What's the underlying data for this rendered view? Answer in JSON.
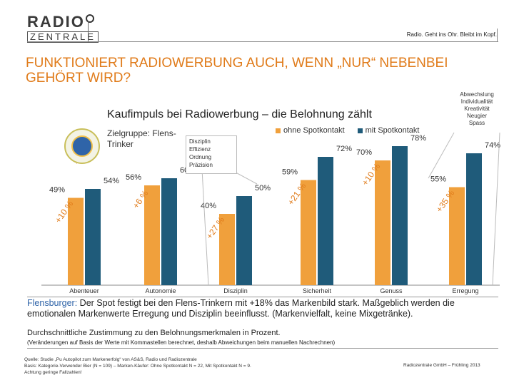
{
  "header": {
    "logo_line1": "RADIO",
    "logo_line2": "ZENTRALE",
    "tagline": "Radio. Geht ins Ohr. Bleibt im Kopf."
  },
  "title": "FUNKTIONIERT RADIOWERBUNG AUCH, WENN „NUR“ NEBENBEI GEHÖRT WIRD?",
  "chart_data": {
    "type": "bar",
    "title": "Kaufimpuls bei Radiowerbung – die Belohnung zählt",
    "target_group": "Zielgruppe: Flens-Trinker",
    "categories": [
      "Abenteuer",
      "Autonomie",
      "Disziplin",
      "Sicherheit",
      "Genuss",
      "Erregung"
    ],
    "series": [
      {
        "name": "ohne Spotkontakt",
        "color": "#f0a03c",
        "values": [
          49,
          56,
          40,
          59,
          70,
          55
        ]
      },
      {
        "name": "mit Spotkontakt",
        "color": "#1f5b7a",
        "values": [
          54,
          60,
          50,
          72,
          78,
          74
        ]
      }
    ],
    "value_labels_ohne": [
      "49%",
      "56%",
      "40%",
      "59%",
      "70%",
      "55%"
    ],
    "value_labels_mit": [
      "54%",
      "60%",
      "50%",
      "72%",
      "78%",
      "74%"
    ],
    "uplift_labels": [
      "+10 %",
      "+6 %",
      "+27 %",
      "+21 %",
      "+10 %",
      "+35 %"
    ],
    "overall_uplift": "+18 %",
    "ylim": [
      0,
      100
    ],
    "emotion_labels": [
      "Abwechslung",
      "Individualität",
      "Kreativität",
      "Neugier",
      "Spass"
    ],
    "discipline_labels": [
      "Disziplin",
      "Effizienz",
      "Ordnung",
      "Präzision"
    ]
  },
  "description": {
    "lead": "Flensburger:",
    "text": " Der Spot festigt bei den Flens-Trinkern mit +18% das Markenbild stark. Maßgeblich werden die emotionalen Markenwerte Erregung und Disziplin beeinflusst. (Markenvielfalt, keine Mixgetränke).",
    "note1": "Durchschnittliche Zustimmung zu den Belohnungsmerkmalen in Prozent.",
    "note2": "(Veränderungen auf Basis der Werte mit Kommastellen berechnet, deshalb Abweichungen beim manuellen Nachrechnen)"
  },
  "footer": {
    "source_line1": "Quelle: Studie „Pu Autopilot zum Markenerfolg“ von AS&S, Radio und Radiozentrale",
    "source_line2": "Basis: Kategorie-Verwender Bier (N = 109) – Marken-Käufer: Ohne Spotkontakt N = 22, Mit Spotkontakt N = 9.",
    "source_line3": "Achtung geringe Fallzahlen!",
    "credit": "Radiozentrale GmbH – Frühling 2013"
  }
}
